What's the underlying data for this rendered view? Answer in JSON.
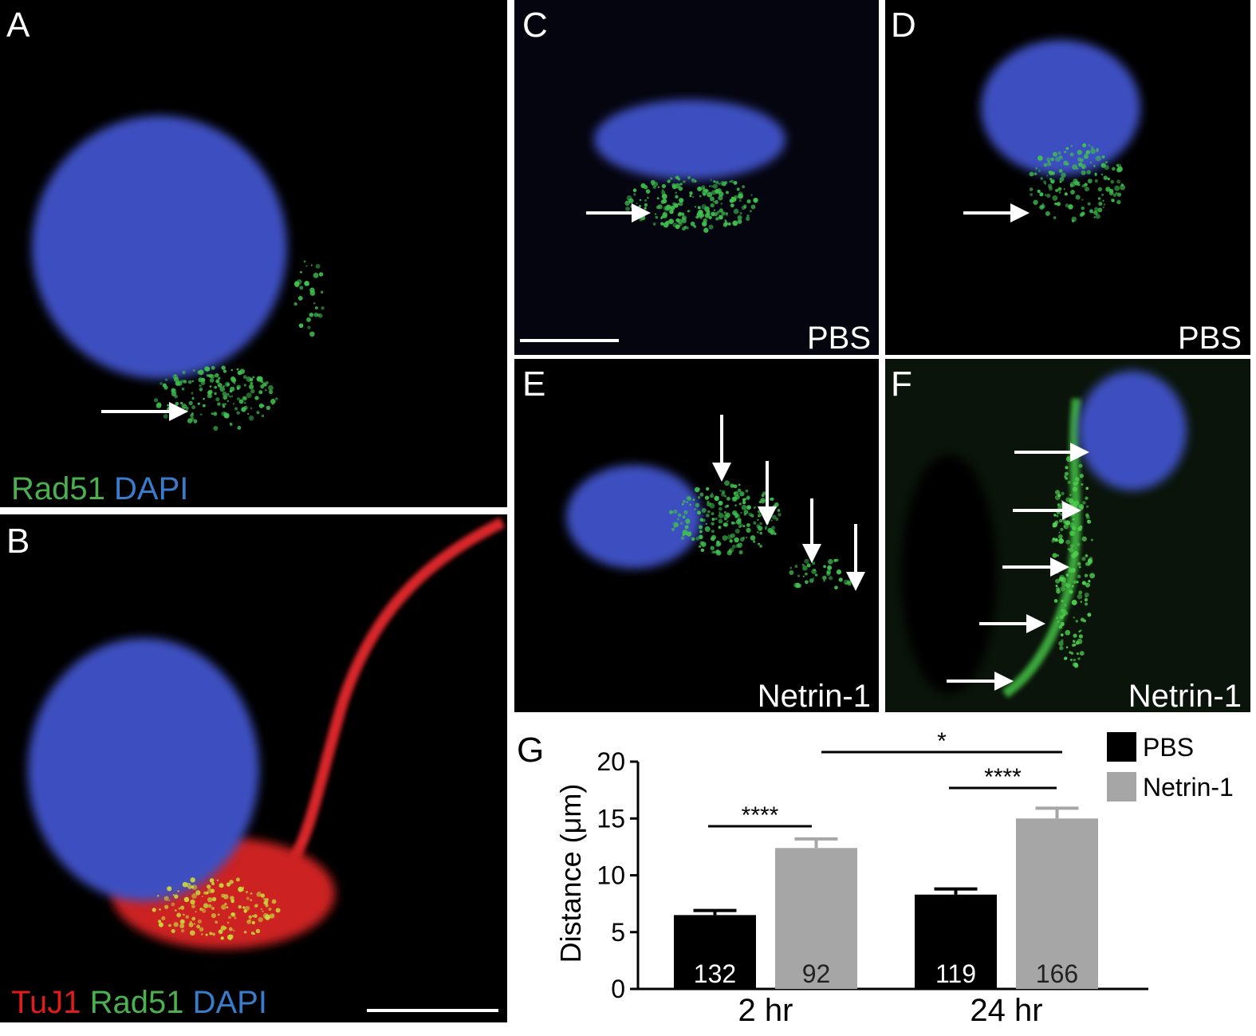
{
  "panels": [
    {
      "label": "A",
      "caption": [
        "Rad51",
        "DAPI"
      ]
    },
    {
      "label": "B",
      "caption": [
        "TuJ1",
        "Rad51",
        "DAPI"
      ]
    },
    {
      "label": "C",
      "caption": [
        "PBS"
      ]
    },
    {
      "label": "D",
      "caption": [
        "PBS"
      ]
    },
    {
      "label": "E",
      "caption": [
        "Netrin-1"
      ]
    },
    {
      "label": "F",
      "caption": [
        "Netrin-1"
      ]
    }
  ],
  "chart_data": {
    "type": "bar",
    "panel_label": "G",
    "ylabel": "Distance (μm)",
    "categories": [
      "2 hr",
      "24 hr"
    ],
    "series": [
      {
        "name": "PBS",
        "color": "#000000",
        "values": [
          6.5,
          8.3
        ],
        "errors": [
          0.4,
          0.5
        ],
        "n": [
          132,
          119
        ]
      },
      {
        "name": "Netrin-1",
        "color": "#a6a6a6",
        "values": [
          12.4,
          15.0
        ],
        "errors": [
          0.8,
          0.9
        ],
        "n": [
          92,
          166
        ]
      }
    ],
    "ylim": [
      0,
      20
    ],
    "yticks": [
      0,
      5,
      10,
      15,
      20
    ],
    "annotations": [
      "****",
      "****",
      "*"
    ]
  }
}
